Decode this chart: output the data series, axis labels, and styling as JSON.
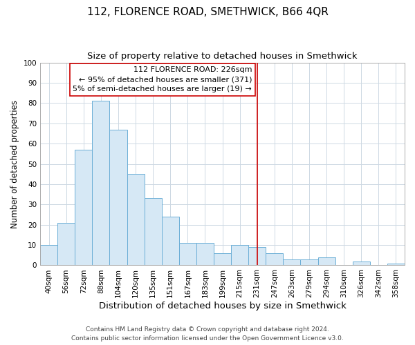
{
  "title": "112, FLORENCE ROAD, SMETHWICK, B66 4QR",
  "subtitle": "Size of property relative to detached houses in Smethwick",
  "xlabel": "Distribution of detached houses by size in Smethwick",
  "ylabel": "Number of detached properties",
  "bar_labels": [
    "40sqm",
    "56sqm",
    "72sqm",
    "88sqm",
    "104sqm",
    "120sqm",
    "135sqm",
    "151sqm",
    "167sqm",
    "183sqm",
    "199sqm",
    "215sqm",
    "231sqm",
    "247sqm",
    "263sqm",
    "279sqm",
    "294sqm",
    "310sqm",
    "326sqm",
    "342sqm",
    "358sqm"
  ],
  "bar_heights": [
    10,
    21,
    57,
    81,
    67,
    45,
    33,
    24,
    11,
    11,
    6,
    10,
    9,
    6,
    3,
    3,
    4,
    0,
    2,
    0,
    1
  ],
  "bar_color": "#d6e8f5",
  "bar_edgecolor": "#6baed6",
  "vline_x_index": 12,
  "vline_color": "#cc0000",
  "annotation_title": "112 FLORENCE ROAD: 226sqm",
  "annotation_line1": "← 95% of detached houses are smaller (371)",
  "annotation_line2": "5% of semi-detached houses are larger (19) →",
  "annotation_box_edgecolor": "#cc0000",
  "annotation_box_facecolor": "#ffffff",
  "ylim": [
    0,
    100
  ],
  "yticks": [
    0,
    10,
    20,
    30,
    40,
    50,
    60,
    70,
    80,
    90,
    100
  ],
  "footer1": "Contains HM Land Registry data © Crown copyright and database right 2024.",
  "footer2": "Contains public sector information licensed under the Open Government Licence v3.0.",
  "title_fontsize": 11,
  "subtitle_fontsize": 9.5,
  "xlabel_fontsize": 9.5,
  "ylabel_fontsize": 8.5,
  "tick_fontsize": 7.5,
  "annotation_fontsize": 8,
  "footer_fontsize": 6.5,
  "background_color": "#ffffff",
  "grid_color": "#cdd8e3",
  "spine_color": "#aaaaaa"
}
